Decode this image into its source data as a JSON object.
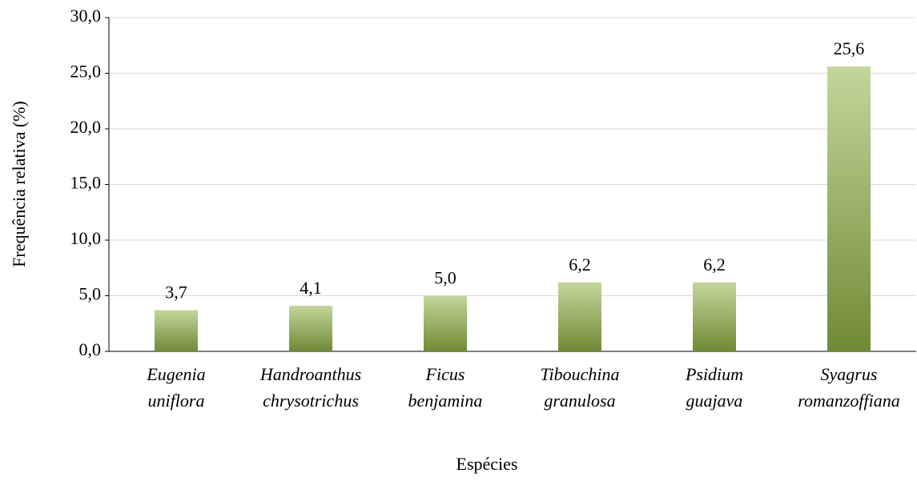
{
  "chart_data": {
    "type": "bar",
    "x_label": "Espécies",
    "y_label": "Frequência relativa (%)",
    "categories": [
      "Eugenia uniflora",
      "Handroanthus chrysotrichus",
      "Ficus benjamina",
      "Tibouchina granulosa",
      "Psidium guajava",
      "Syagrus romanzoffiana"
    ],
    "values": [
      3.7,
      4.1,
      5.0,
      6.2,
      6.2,
      25.6
    ],
    "value_labels": [
      "3,7",
      "4,1",
      "5,0",
      "6,2",
      "6,2",
      "25,6"
    ],
    "color": "#9bbb59",
    "ylim": [
      0,
      30
    ],
    "yticks": [
      {
        "value": 0,
        "label": "0,0"
      },
      {
        "value": 5,
        "label": "5,0"
      },
      {
        "value": 10,
        "label": "10,0"
      },
      {
        "value": 15,
        "label": "15,0"
      },
      {
        "value": 20,
        "label": "20,0"
      },
      {
        "value": 25,
        "label": "25,0"
      },
      {
        "value": 30,
        "label": "30,0"
      }
    ],
    "grid": true
  }
}
